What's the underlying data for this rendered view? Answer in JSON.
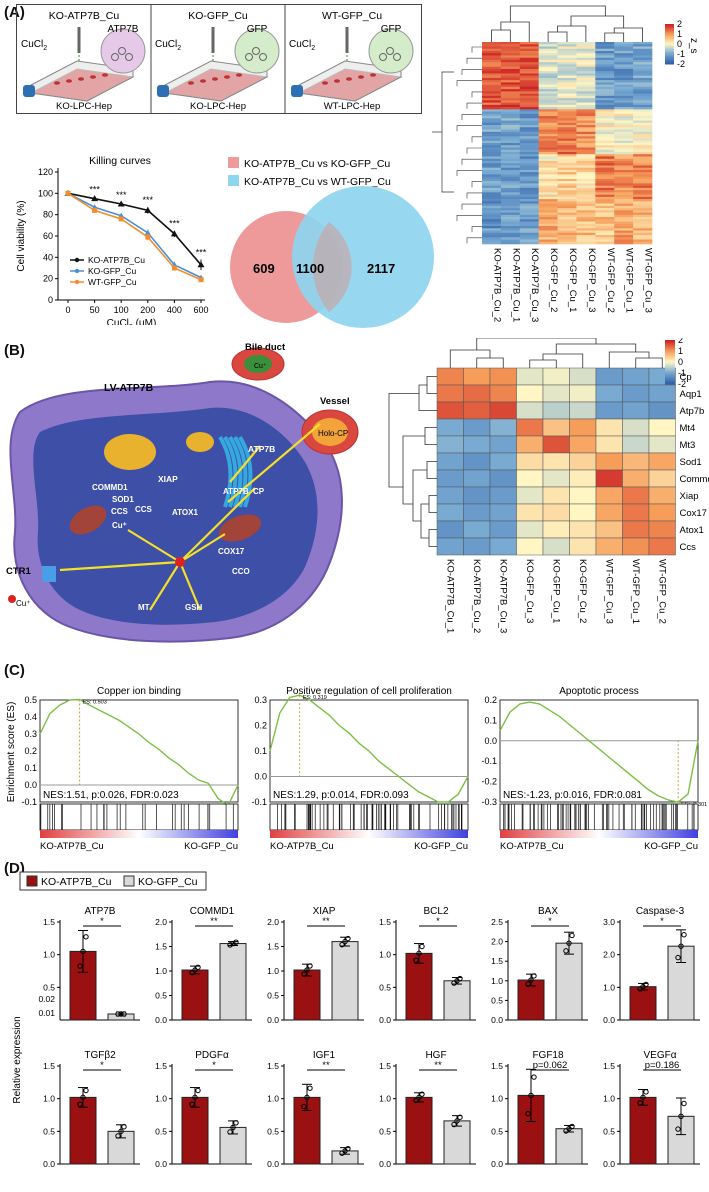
{
  "panels": {
    "a": "(A)",
    "b": "(B)",
    "c": "(C)",
    "d": "(D)"
  },
  "panelA": {
    "flask_titles": [
      "KO-ATP7B_Cu",
      "KO-GFP_Cu",
      "WT-GFP_Cu"
    ],
    "flask_tags": [
      "ATP7B",
      "GFP",
      "GFP"
    ],
    "flask_cells": [
      "KO-LPC-Hep",
      "KO-LPC-Hep",
      "WT-LPC-Hep"
    ],
    "cucl2": "CuCl",
    "cucl2_sub": "2",
    "killing": {
      "title": "Killing curves",
      "ylabel": "Cell viability (%)",
      "xlabel_main": "CuCl",
      "xlabel_sub": "2",
      "xlabel_unit": " (μM)",
      "legend": [
        "KO-ATP7B_Cu",
        "KO-GFP_Cu",
        "WT-GFP_Cu"
      ],
      "sig": "***"
    },
    "venn": {
      "legend": [
        "KO-ATP7B_Cu vs KO-GFP_Cu",
        "KO-ATP7B_Cu vs WT-GFP_Cu"
      ],
      "left": "609",
      "center": "1100",
      "right": "2117"
    },
    "heatmap": {
      "scale_label": "z_s",
      "ticks": [
        "2",
        "1",
        "0",
        "-1",
        "-2"
      ],
      "columns": [
        "KO-ATP7B_Cu_2",
        "KO-ATP7B_Cu_1",
        "KO-ATP7B_Cu_3",
        "KO-GFP_Cu_2",
        "KO-GFP_Cu_1",
        "KO-GFP_Cu_3",
        "WT-GFP_Cu_2",
        "WT-GFP_Cu_1",
        "WT-GFP_Cu_3"
      ]
    }
  },
  "panelB": {
    "labels": {
      "bile": "Bile duct",
      "vessel": "Vessel",
      "lv": "LV-ATP7B",
      "cu_plus": "Cu⁺",
      "holo": "Holo-CP",
      "atp7b1": "ATP7B",
      "atp7b2": "ATP7B",
      "cp": "CP",
      "xiap": "XIAP",
      "atox1": "ATOX1",
      "ccs1": "CCS",
      "commd1": "COMMD1",
      "sod1": "SOD1",
      "ccs2": "CCS",
      "cu_in": "Cu⁺",
      "ctr1": "CTR1",
      "cu_out": "Cu⁺",
      "cox17": "COX17",
      "cco": "CCO",
      "mt": "MT",
      "gsh": "GSH"
    },
    "heatmap": {
      "rows": [
        "Cp",
        "Aqp1",
        "Atp7b",
        "Mt4",
        "Mt3",
        "Sod1",
        "Commd1",
        "Xiap",
        "Cox17",
        "Atox1",
        "Ccs"
      ],
      "columns": [
        "KO-ATP7B_Cu_1",
        "KO-ATP7B_Cu_2",
        "KO-ATP7B_Cu_3",
        "KO-GFP_Cu_3",
        "KO-GFP_Cu_1",
        "KO-GFP_Cu_2",
        "WT-GFP_Cu_3",
        "WT-GFP_Cu_1",
        "WT-GFP_Cu_2"
      ],
      "ticks": [
        "2",
        "1",
        "0",
        "-1",
        "-2"
      ],
      "values": [
        [
          1.2,
          1.0,
          1.1,
          -0.2,
          -0.1,
          -0.3,
          -1.2,
          -1.1,
          -1.0
        ],
        [
          1.3,
          1.4,
          1.2,
          0.0,
          -0.2,
          -0.1,
          -1.0,
          -1.2,
          -1.1
        ],
        [
          1.6,
          1.5,
          1.7,
          -0.3,
          -0.5,
          -0.4,
          -1.2,
          -1.1,
          -1.3
        ],
        [
          -1.0,
          -1.2,
          -0.9,
          1.3,
          0.6,
          1.0,
          0.2,
          -0.3,
          0.0
        ],
        [
          -0.9,
          -1.0,
          -1.1,
          0.8,
          1.6,
          0.9,
          0.2,
          -0.4,
          -0.2
        ],
        [
          -1.1,
          -1.3,
          -1.0,
          0.3,
          0.2,
          0.4,
          1.0,
          0.7,
          0.9
        ],
        [
          -1.2,
          -1.1,
          -1.3,
          0.0,
          -0.2,
          0.1,
          1.8,
          0.8,
          0.4
        ],
        [
          -1.1,
          -1.3,
          -1.2,
          -0.2,
          0.2,
          0.0,
          0.9,
          1.3,
          0.8
        ],
        [
          -1.0,
          -1.2,
          -1.1,
          0.2,
          0.3,
          0.0,
          0.9,
          1.3,
          1.0
        ],
        [
          -1.3,
          -1.0,
          -1.2,
          -0.2,
          0.1,
          0.2,
          0.6,
          1.3,
          1.2
        ],
        [
          -1.1,
          -1.2,
          -1.0,
          0.0,
          -0.3,
          0.2,
          0.8,
          1.1,
          1.3
        ]
      ]
    }
  },
  "chart_data": [
    {
      "type": "line",
      "title": "Killing curves",
      "xlabel": "CuCl2 (μM)",
      "ylabel": "Cell viability (%)",
      "x": [
        "0",
        "50",
        "100",
        "200",
        "400",
        "600"
      ],
      "ylim": [
        0,
        120
      ],
      "yticks": [
        "0",
        "20",
        "40",
        "60",
        "80",
        "100",
        "120"
      ],
      "series": [
        {
          "name": "KO-ATP7B_Cu",
          "color": "#111111",
          "values": [
            100,
            95,
            90,
            84,
            62,
            33
          ],
          "err": [
            1.5,
            2,
            2,
            3,
            3,
            5
          ]
        },
        {
          "name": "KO-GFP_Cu",
          "color": "#4a90d9",
          "values": [
            100,
            87,
            79,
            63,
            33,
            21
          ],
          "err": [
            1.5,
            2,
            2,
            3,
            3,
            2
          ]
        },
        {
          "name": "WT-GFP_Cu",
          "color": "#f28e2b",
          "values": [
            100,
            84,
            76,
            59,
            30,
            19
          ],
          "err": [
            1.5,
            2,
            2,
            3,
            2,
            2
          ]
        }
      ]
    },
    {
      "type": "line",
      "title": "Copper ion binding",
      "ylabel": "Enrichment score (ES)",
      "ylim": [
        -0.1,
        0.5
      ],
      "yticks": [
        "0.5",
        "0.4",
        "0.3",
        "0.2",
        "0.1",
        "0.0",
        "-0.1"
      ],
      "values": [
        0.3,
        0.42,
        0.47,
        0.5,
        0.503,
        0.47,
        0.44,
        0.41,
        0.38,
        0.34,
        0.3,
        0.25,
        0.21,
        0.16,
        0.12,
        0.07,
        0.03,
        0.01,
        -0.08,
        -0.12,
        0.0
      ],
      "peak_label": "ES: 0.503",
      "stats": "NES:1.51, p:0.026, FDR:0.023",
      "low": "KO-ATP7B_Cu",
      "high": "KO-GFP_Cu"
    },
    {
      "type": "line",
      "title": "Positive regulation of cell proliferation",
      "ylim": [
        -0.1,
        0.3
      ],
      "yticks": [
        "0.3",
        "0.2",
        "0.1",
        "0.0",
        "-0.1"
      ],
      "values": [
        0.1,
        0.25,
        0.31,
        0.319,
        0.3,
        0.27,
        0.24,
        0.2,
        0.17,
        0.13,
        0.1,
        0.06,
        0.03,
        0.0,
        -0.03,
        -0.06,
        -0.08,
        -0.1,
        -0.1,
        -0.07,
        0.0
      ],
      "peak_label": "ES: 0.319",
      "stats": "NES:1.29, p:0.014, FDR:0.093",
      "low": "KO-ATP7B_Cu",
      "high": "KO-GFP_Cu"
    },
    {
      "type": "line",
      "title": "Apoptotic process",
      "ylim": [
        -0.3,
        0.2
      ],
      "yticks": [
        "0.2",
        "0.1",
        "0.0",
        "-0.1",
        "-0.2",
        "-0.3"
      ],
      "values": [
        0.05,
        0.14,
        0.18,
        0.19,
        0.18,
        0.15,
        0.12,
        0.08,
        0.04,
        0.0,
        -0.04,
        -0.08,
        -0.12,
        -0.16,
        -0.2,
        -0.24,
        -0.27,
        -0.29,
        -0.301,
        -0.26,
        0.0
      ],
      "peak_label": "ES: -0.301",
      "stats": "NES:-1.23, p:0.016, FDR:0.081",
      "low": "KO-ATP7B_Cu",
      "high": "KO-GFP_Cu"
    },
    {
      "type": "bar",
      "legend": [
        "KO-ATP7B_Cu",
        "KO-GFP_Cu"
      ],
      "colors": [
        "#9b1111",
        "#d9d9d9"
      ],
      "ylabel": "Relative expression",
      "charts": [
        {
          "title": "ATP7B",
          "values": [
            1.05,
            0.012
          ],
          "err": [
            0.32,
            0.001
          ],
          "ylim": [
            0,
            1.5
          ],
          "yticks": [
            "1.5",
            "1.0",
            "0.5"
          ],
          "lowticks": [
            "0.02",
            "0.01"
          ],
          "sig": "*"
        },
        {
          "title": "COMMD1",
          "values": [
            1.02,
            1.56
          ],
          "err": [
            0.08,
            0.04
          ],
          "ylim": [
            0,
            2.0
          ],
          "yticks": [
            "2.0",
            "1.5",
            "1.0",
            "0.5",
            "0.0"
          ],
          "sig": "**"
        },
        {
          "title": "XIAP",
          "values": [
            1.02,
            1.6
          ],
          "err": [
            0.12,
            0.09
          ],
          "ylim": [
            0,
            2.0
          ],
          "yticks": [
            "2.0",
            "1.5",
            "1.0",
            "0.5",
            "0.0"
          ],
          "sig": "**"
        },
        {
          "title": "BCL2",
          "values": [
            1.02,
            0.6
          ],
          "err": [
            0.15,
            0.05
          ],
          "ylim": [
            0,
            1.5
          ],
          "yticks": [
            "1.5",
            "1.0",
            "0.5",
            "0.0"
          ],
          "sig": "*"
        },
        {
          "title": "BAX",
          "values": [
            1.02,
            1.96
          ],
          "err": [
            0.15,
            0.28
          ],
          "ylim": [
            0,
            2.5
          ],
          "yticks": [
            "2.5",
            "2.0",
            "1.5",
            "1.0",
            "0.5",
            "0.0"
          ],
          "sig": "*"
        },
        {
          "title": "Caspase-3",
          "values": [
            1.02,
            2.26
          ],
          "err": [
            0.1,
            0.5
          ],
          "ylim": [
            0,
            3.0
          ],
          "yticks": [
            "3.0",
            "2.0",
            "1.0",
            "0.0"
          ],
          "sig": "*"
        },
        {
          "title": "TGFβ2",
          "values": [
            1.02,
            0.5
          ],
          "err": [
            0.15,
            0.1
          ],
          "ylim": [
            0,
            1.5
          ],
          "yticks": [
            "1.5",
            "1.0",
            "0.5",
            "0.0"
          ],
          "sig": "*"
        },
        {
          "title": "PDGFα",
          "values": [
            1.02,
            0.56
          ],
          "err": [
            0.15,
            0.1
          ],
          "ylim": [
            0,
            1.5
          ],
          "yticks": [
            "1.5",
            "1.0",
            "0.5",
            "0.0"
          ],
          "sig": "*"
        },
        {
          "title": "IGF1",
          "values": [
            1.02,
            0.2
          ],
          "err": [
            0.2,
            0.05
          ],
          "ylim": [
            0,
            1.5
          ],
          "yticks": [
            "1.5",
            "1.0",
            "0.5",
            "0.0"
          ],
          "sig": "**"
        },
        {
          "title": "HGF",
          "values": [
            1.02,
            0.66
          ],
          "err": [
            0.07,
            0.08
          ],
          "ylim": [
            0,
            1.5
          ],
          "yticks": [
            "1.5",
            "1.0",
            "0.5",
            "0.0"
          ],
          "sig": "**"
        },
        {
          "title": "FGF18",
          "values": [
            1.05,
            0.54
          ],
          "err": [
            0.4,
            0.05
          ],
          "ylim": [
            0,
            1.5
          ],
          "yticks": [
            "1.5",
            "1.0",
            "0.5",
            "0.0"
          ],
          "sig": "p=0.062"
        },
        {
          "title": "VEGFα",
          "values": [
            1.02,
            0.73
          ],
          "err": [
            0.12,
            0.28
          ],
          "ylim": [
            0,
            1.5
          ],
          "yticks": [
            "1.5",
            "1.0",
            "0.5",
            "0.0"
          ],
          "sig": "p=0.186"
        }
      ]
    }
  ]
}
